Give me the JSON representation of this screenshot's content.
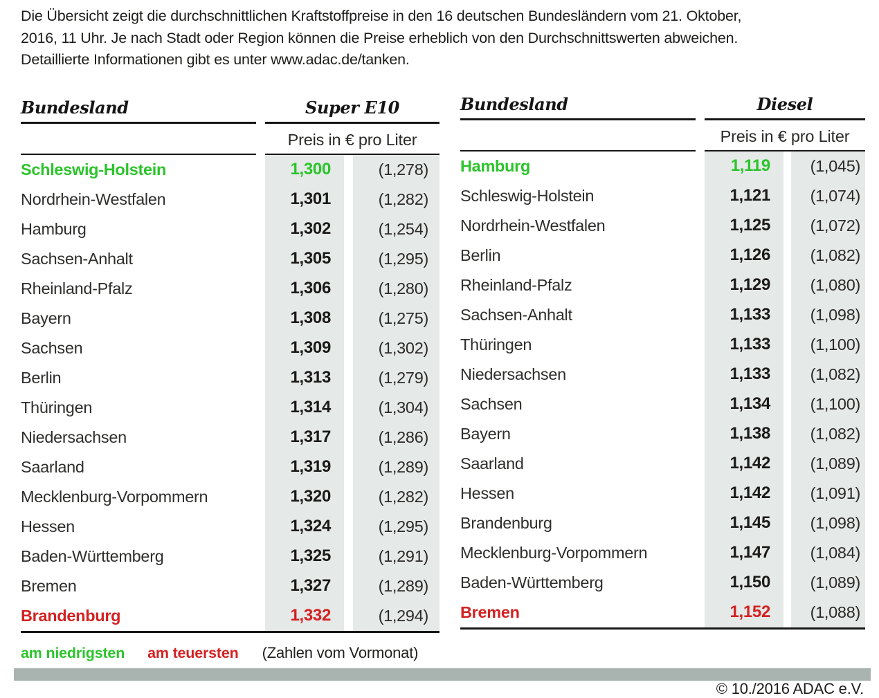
{
  "intro": {
    "lines": [
      "Die Übersicht zeigt die durchschnittlichen Kraftstoffpreise in den 16 deutschen Bundesländern vom 21. Oktober,",
      "2016, 11 Uhr. Je nach Stadt oder Region können die Preise erheblich von den Durchschnittswerten abweichen.",
      "Detaillierte Informationen gibt es unter www.adac.de/tanken."
    ]
  },
  "chart_data": [
    {
      "type": "table",
      "title": "Super E10",
      "state_header": "Bundesland",
      "unit_header": "Preis in € pro Liter",
      "rows": [
        {
          "state": "Schleswig-Holstein",
          "price": "1,300",
          "previous": "(1,278)",
          "highlight": "lowest"
        },
        {
          "state": "Nordrhein-Westfalen",
          "price": "1,301",
          "previous": "(1,282)",
          "highlight": null
        },
        {
          "state": "Hamburg",
          "price": "1,302",
          "previous": "(1,254)",
          "highlight": null
        },
        {
          "state": "Sachsen-Anhalt",
          "price": "1,305",
          "previous": "(1,295)",
          "highlight": null
        },
        {
          "state": "Rheinland-Pfalz",
          "price": "1,306",
          "previous": "(1,280)",
          "highlight": null
        },
        {
          "state": "Bayern",
          "price": "1,308",
          "previous": "(1,275)",
          "highlight": null
        },
        {
          "state": "Sachsen",
          "price": "1,309",
          "previous": "(1,302)",
          "highlight": null
        },
        {
          "state": "Berlin",
          "price": "1,313",
          "previous": "(1,279)",
          "highlight": null
        },
        {
          "state": "Thüringen",
          "price": "1,314",
          "previous": "(1,304)",
          "highlight": null
        },
        {
          "state": "Niedersachsen",
          "price": "1,317",
          "previous": "(1,286)",
          "highlight": null
        },
        {
          "state": "Saarland",
          "price": "1,319",
          "previous": "(1,289)",
          "highlight": null
        },
        {
          "state": "Mecklenburg-Vorpommern",
          "price": "1,320",
          "previous": "(1,282)",
          "highlight": null
        },
        {
          "state": "Hessen",
          "price": "1,324",
          "previous": "(1,295)",
          "highlight": null
        },
        {
          "state": "Baden-Württemberg",
          "price": "1,325",
          "previous": "(1,291)",
          "highlight": null
        },
        {
          "state": "Bremen",
          "price": "1,327",
          "previous": "(1,289)",
          "highlight": null
        },
        {
          "state": "Brandenburg",
          "price": "1,332",
          "previous": "(1,294)",
          "highlight": "highest"
        }
      ]
    },
    {
      "type": "table",
      "title": "Diesel",
      "state_header": "Bundesland",
      "unit_header": "Preis in € pro Liter",
      "rows": [
        {
          "state": "Hamburg",
          "price": "1,119",
          "previous": "(1,045)",
          "highlight": "lowest"
        },
        {
          "state": "Schleswig-Holstein",
          "price": "1,121",
          "previous": "(1,074)",
          "highlight": null
        },
        {
          "state": "Nordrhein-Westfalen",
          "price": "1,125",
          "previous": "(1,072)",
          "highlight": null
        },
        {
          "state": "Berlin",
          "price": "1,126",
          "previous": "(1,082)",
          "highlight": null
        },
        {
          "state": "Rheinland-Pfalz",
          "price": "1,129",
          "previous": "(1,080)",
          "highlight": null
        },
        {
          "state": "Sachsen-Anhalt",
          "price": "1,133",
          "previous": "(1,098)",
          "highlight": null
        },
        {
          "state": "Thüringen",
          "price": "1,133",
          "previous": "(1,100)",
          "highlight": null
        },
        {
          "state": "Niedersachsen",
          "price": "1,133",
          "previous": "(1,082)",
          "highlight": null
        },
        {
          "state": "Sachsen",
          "price": "1,134",
          "previous": "(1,100)",
          "highlight": null
        },
        {
          "state": "Bayern",
          "price": "1,138",
          "previous": "(1,082)",
          "highlight": null
        },
        {
          "state": "Saarland",
          "price": "1,142",
          "previous": "(1,089)",
          "highlight": null
        },
        {
          "state": "Hessen",
          "price": "1,142",
          "previous": "(1,091)",
          "highlight": null
        },
        {
          "state": "Brandenburg",
          "price": "1,145",
          "previous": "(1,098)",
          "highlight": null
        },
        {
          "state": "Mecklenburg-Vorpommern",
          "price": "1,147",
          "previous": "(1,084)",
          "highlight": null
        },
        {
          "state": "Baden-Württemberg",
          "price": "1,150",
          "previous": "(1,089)",
          "highlight": null
        },
        {
          "state": "Bremen",
          "price": "1,152",
          "previous": "(1,088)",
          "highlight": "highest"
        }
      ]
    }
  ],
  "legend": {
    "lowest_label": "am niedrigsten",
    "highest_label": "am teuersten",
    "note": "(Zahlen vom Vormonat)"
  },
  "footer": {
    "copyright": "© 10./2016 ADAC e.V."
  },
  "colors": {
    "lowest": "#2bc42b",
    "highest": "#d32121",
    "price_column_bg": "#e5e9e7",
    "divider_bar": "#a9b3b0"
  }
}
